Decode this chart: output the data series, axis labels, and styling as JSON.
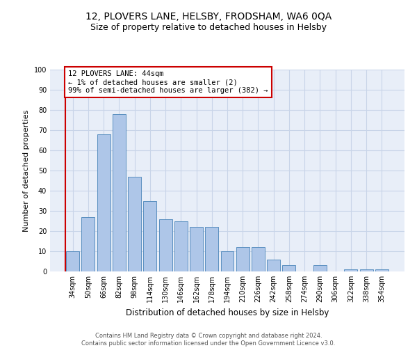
{
  "title": "12, PLOVERS LANE, HELSBY, FRODSHAM, WA6 0QA",
  "subtitle": "Size of property relative to detached houses in Helsby",
  "xlabel": "Distribution of detached houses by size in Helsby",
  "ylabel": "Number of detached properties",
  "categories": [
    "34sqm",
    "50sqm",
    "66sqm",
    "82sqm",
    "98sqm",
    "114sqm",
    "130sqm",
    "146sqm",
    "162sqm",
    "178sqm",
    "194sqm",
    "210sqm",
    "226sqm",
    "242sqm",
    "258sqm",
    "274sqm",
    "290sqm",
    "306sqm",
    "322sqm",
    "338sqm",
    "354sqm"
  ],
  "values": [
    10,
    27,
    68,
    78,
    47,
    35,
    26,
    25,
    22,
    22,
    10,
    12,
    12,
    6,
    3,
    0,
    3,
    0,
    1,
    1,
    1
  ],
  "bar_color": "#aec6e8",
  "bar_edge_color": "#5a8fc0",
  "annotation_line_color": "#cc0000",
  "annotation_box_text": "12 PLOVERS LANE: 44sqm\n← 1% of detached houses are smaller (2)\n99% of semi-detached houses are larger (382) →",
  "annotation_box_color": "#cc0000",
  "ylim": [
    0,
    100
  ],
  "yticks": [
    0,
    10,
    20,
    30,
    40,
    50,
    60,
    70,
    80,
    90,
    100
  ],
  "grid_color": "#c8d4e8",
  "bg_color": "#e8eef8",
  "footer_line1": "Contains HM Land Registry data © Crown copyright and database right 2024.",
  "footer_line2": "Contains public sector information licensed under the Open Government Licence v3.0.",
  "title_fontsize": 10,
  "subtitle_fontsize": 9,
  "tick_fontsize": 7,
  "ylabel_fontsize": 8,
  "xlabel_fontsize": 8.5,
  "annotation_fontsize": 7.5,
  "footer_fontsize": 6
}
